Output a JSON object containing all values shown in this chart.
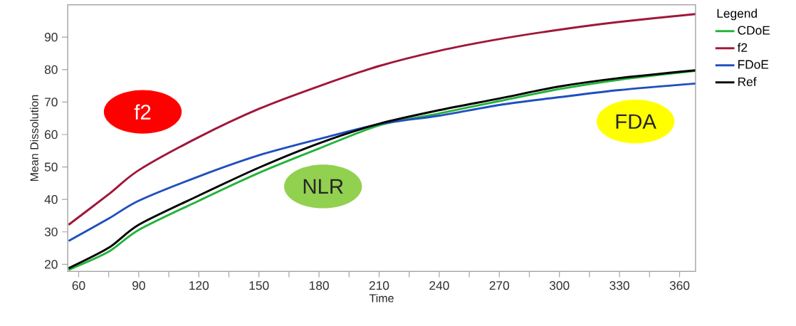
{
  "chart_data": {
    "type": "line",
    "xlabel": "Time",
    "ylabel": "Mean Dissolution",
    "legend_title": "Legend",
    "legend": "right",
    "grid": false,
    "marker": "none",
    "line_style": "solid",
    "xlim": [
      54.5,
      368
    ],
    "ylim": [
      17.8,
      100
    ],
    "xticks": [
      60,
      90,
      120,
      150,
      180,
      210,
      240,
      270,
      300,
      330,
      360
    ],
    "yticks": [
      20,
      30,
      40,
      50,
      60,
      70,
      80,
      90
    ],
    "x": [
      55,
      75,
      90,
      120,
      150,
      180,
      210,
      240,
      270,
      300,
      330,
      368
    ],
    "series": [
      {
        "name": "CDoE",
        "color": "#22b33a",
        "values": [
          18.3,
          23.9,
          30.6,
          39.6,
          48.2,
          55.7,
          62.8,
          66.5,
          70.3,
          74.0,
          76.9,
          79.6
        ]
      },
      {
        "name": "f2",
        "color": "#a0163a",
        "values": [
          32.2,
          41.6,
          49.0,
          59.2,
          67.9,
          74.9,
          81.1,
          85.8,
          89.4,
          92.3,
          94.7,
          97.1
        ]
      },
      {
        "name": "FDoE",
        "color": "#1f4fbf",
        "values": [
          27.2,
          34.1,
          39.6,
          47.1,
          53.6,
          58.6,
          63.2,
          65.8,
          69.1,
          71.5,
          73.7,
          75.7
        ]
      },
      {
        "name": "Ref",
        "color": "#000000",
        "values": [
          18.8,
          25.1,
          32.2,
          41.2,
          49.8,
          57.3,
          63.3,
          67.5,
          71.1,
          74.8,
          77.4,
          79.8
        ]
      }
    ],
    "annotations": [
      "f2",
      "NLR",
      "FDA"
    ]
  }
}
